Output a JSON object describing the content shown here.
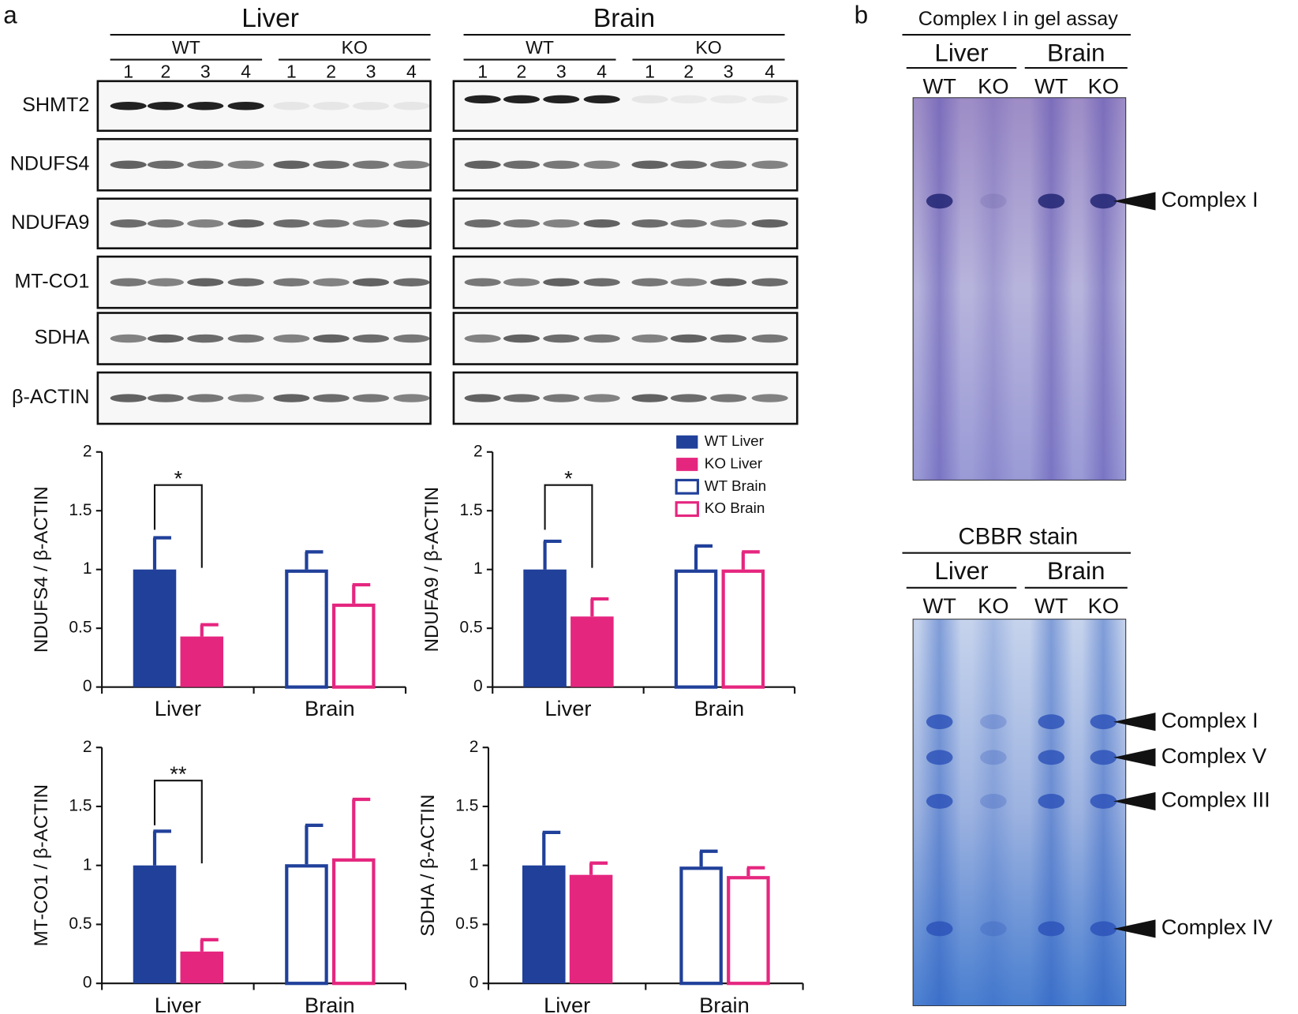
{
  "panel_labels": [
    "a",
    "b"
  ],
  "blot": {
    "tissues": [
      "Liver",
      "Brain"
    ],
    "genotypes": [
      "WT",
      "KO"
    ],
    "lanes": [
      "1",
      "2",
      "3",
      "4"
    ],
    "proteins": [
      "SHMT2",
      "NDUFS4",
      "NDUFA9",
      "MT-CO1",
      "SDHA",
      "β-ACTIN"
    ]
  },
  "gels": [
    {
      "title": "Complex I in gel assay",
      "markers": [
        "Complex I"
      ]
    },
    {
      "title": "CBBR stain",
      "markers": [
        "Complex I",
        "Complex V",
        "Complex III",
        "Complex IV"
      ]
    }
  ],
  "chart_data": [
    {
      "type": "bar",
      "ylabel": "NDUFS4 / β-ACTIN",
      "categories": [
        "Liver",
        "Brain"
      ],
      "ylim": [
        0,
        2
      ],
      "yticks": [
        0,
        0.5,
        1,
        1.5,
        2
      ],
      "significance": "*",
      "legend": true,
      "series": [
        {
          "name": "WT Liver",
          "color": "#20409a",
          "filled": true,
          "values": [
            1.0,
            null
          ],
          "errors": [
            0.27,
            null
          ]
        },
        {
          "name": "KO Liver",
          "color": "#e5267f",
          "filled": true,
          "values": [
            0.43,
            null
          ],
          "errors": [
            0.1,
            null
          ]
        },
        {
          "name": "WT Brain",
          "color": "#20409a",
          "filled": false,
          "values": [
            null,
            1.0
          ],
          "errors": [
            null,
            0.15
          ]
        },
        {
          "name": "KO Brain",
          "color": "#e5267f",
          "filled": false,
          "values": [
            null,
            0.71
          ],
          "errors": [
            null,
            0.16
          ]
        }
      ]
    },
    {
      "type": "bar",
      "ylabel": "NDUFA9 / β-ACTIN",
      "categories": [
        "Liver",
        "Brain"
      ],
      "ylim": [
        0,
        2
      ],
      "yticks": [
        0,
        0.5,
        1,
        1.5,
        2
      ],
      "significance": "*",
      "legend": false,
      "series": [
        {
          "color": "#20409a",
          "filled": true,
          "values": [
            1.0,
            null
          ],
          "errors": [
            0.24,
            null
          ]
        },
        {
          "color": "#e5267f",
          "filled": true,
          "values": [
            0.6,
            null
          ],
          "errors": [
            0.15,
            null
          ]
        },
        {
          "color": "#20409a",
          "filled": false,
          "values": [
            null,
            1.0
          ],
          "errors": [
            null,
            0.2
          ]
        },
        {
          "color": "#e5267f",
          "filled": false,
          "values": [
            null,
            1.0
          ],
          "errors": [
            null,
            0.15
          ]
        }
      ]
    },
    {
      "type": "bar",
      "ylabel": "MT-CO1 / β-ACTIN",
      "categories": [
        "Liver",
        "Brain"
      ],
      "ylim": [
        0,
        2
      ],
      "yticks": [
        0,
        0.5,
        1,
        1.5,
        2
      ],
      "significance": "**",
      "legend": false,
      "series": [
        {
          "color": "#20409a",
          "filled": true,
          "values": [
            1.0,
            null
          ],
          "errors": [
            0.29,
            null
          ]
        },
        {
          "color": "#e5267f",
          "filled": true,
          "values": [
            0.27,
            null
          ],
          "errors": [
            0.1,
            null
          ]
        },
        {
          "color": "#20409a",
          "filled": false,
          "values": [
            null,
            1.01
          ],
          "errors": [
            null,
            0.33
          ]
        },
        {
          "color": "#e5267f",
          "filled": false,
          "values": [
            null,
            1.06
          ],
          "errors": [
            null,
            0.5
          ]
        }
      ]
    },
    {
      "type": "bar",
      "ylabel": "SDHA / β-ACTIN",
      "categories": [
        "Liver",
        "Brain"
      ],
      "ylim": [
        0,
        2
      ],
      "yticks": [
        0,
        0.5,
        1,
        1.5,
        2
      ],
      "legend": false,
      "series": [
        {
          "color": "#20409a",
          "filled": true,
          "values": [
            1.0,
            null
          ],
          "errors": [
            0.28,
            null
          ]
        },
        {
          "color": "#e5267f",
          "filled": true,
          "values": [
            0.92,
            null
          ],
          "errors": [
            0.1,
            null
          ]
        },
        {
          "color": "#20409a",
          "filled": false,
          "values": [
            null,
            0.99
          ],
          "errors": [
            null,
            0.13
          ]
        },
        {
          "color": "#e5267f",
          "filled": false,
          "values": [
            null,
            0.91
          ],
          "errors": [
            null,
            0.07
          ]
        }
      ]
    }
  ]
}
